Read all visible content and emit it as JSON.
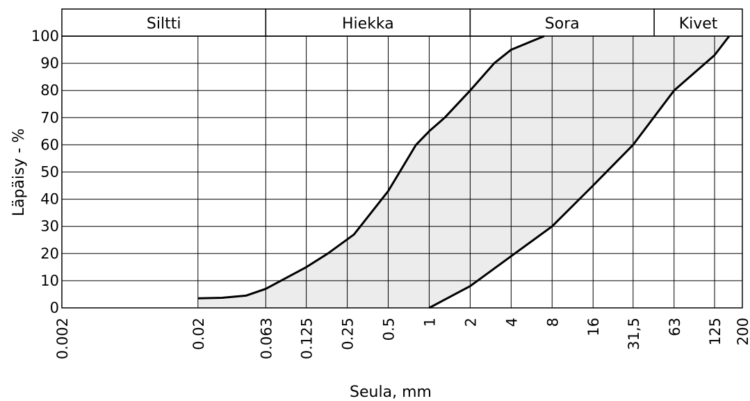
{
  "chart_data": {
    "type": "area",
    "xlabel": "Seula, mm",
    "ylabel": "Läpäisy - %",
    "x_scale": "log",
    "xlim": [
      0.002,
      200
    ],
    "ylim": [
      0,
      100
    ],
    "grid": true,
    "x_ticks": [
      {
        "value": 0.002,
        "label": "0.002"
      },
      {
        "value": 0.02,
        "label": "0.02"
      },
      {
        "value": 0.063,
        "label": "0.063"
      },
      {
        "value": 0.125,
        "label": "0.125"
      },
      {
        "value": 0.25,
        "label": "0.25"
      },
      {
        "value": 0.5,
        "label": "0.5"
      },
      {
        "value": 1,
        "label": "1"
      },
      {
        "value": 2,
        "label": "2"
      },
      {
        "value": 4,
        "label": "4"
      },
      {
        "value": 8,
        "label": "8"
      },
      {
        "value": 16,
        "label": "16"
      },
      {
        "value": 31.5,
        "label": "31,5"
      },
      {
        "value": 63,
        "label": "63"
      },
      {
        "value": 125,
        "label": "125"
      },
      {
        "value": 200,
        "label": "200"
      }
    ],
    "y_ticks": [
      0,
      10,
      20,
      30,
      40,
      50,
      60,
      70,
      80,
      90,
      100
    ],
    "bands": [
      {
        "label": "Siltti",
        "from": 0.002,
        "to": 0.063
      },
      {
        "label": "Hiekka",
        "from": 0.063,
        "to": 2
      },
      {
        "label": "Sora",
        "from": 2,
        "to": 45
      },
      {
        "label": "Kivet",
        "from": 45,
        "to": 200
      }
    ],
    "series": [
      {
        "x": [
          0.02,
          0.03,
          0.045,
          0.063,
          0.125,
          0.18,
          0.28,
          0.5,
          0.8,
          1,
          1.3,
          2,
          3,
          4,
          5,
          7
        ],
        "y": [
          3.5,
          3.7,
          4.5,
          7,
          15,
          20,
          27,
          43,
          60,
          65,
          70,
          80,
          90,
          95,
          97,
          100
        ]
      },
      {
        "x": [
          1,
          2,
          4,
          8,
          16,
          31.5,
          63,
          125,
          160
        ],
        "y": [
          0,
          8,
          19,
          30,
          45,
          60,
          80,
          93,
          100
        ]
      }
    ],
    "fill_between": true,
    "colors": {
      "fill": "#ececec",
      "line": "#000000",
      "grid": "#000000"
    }
  }
}
